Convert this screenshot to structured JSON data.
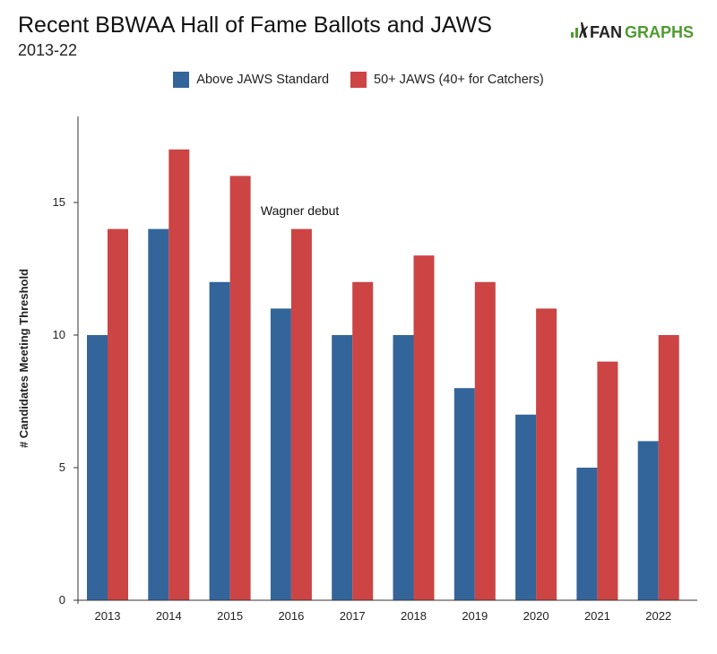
{
  "title": "Recent BBWAA Hall of Fame Ballots and JAWS",
  "subtitle": "2013-22",
  "logo": {
    "text_prefix": "FAN",
    "text_suffix": "GRAPHS",
    "icon": "fangraphs-logo-icon"
  },
  "colors": {
    "above": "#33659a",
    "fifty": "#cc4444",
    "logo_green": "#4f9b2f"
  },
  "chart_data": {
    "type": "bar",
    "title": "Recent BBWAA Hall of Fame Ballots and JAWS",
    "subtitle": "2013-22",
    "xlabel": "",
    "ylabel": "# Candidates Meeting Threshold",
    "categories": [
      "2013",
      "2014",
      "2015",
      "2016",
      "2017",
      "2018",
      "2019",
      "2020",
      "2021",
      "2022"
    ],
    "series": [
      {
        "name": "Above JAWS Standard",
        "values": [
          10,
          14,
          12,
          11,
          10,
          10,
          8,
          7,
          5,
          6
        ]
      },
      {
        "name": "50+ JAWS (40+ for Catchers)",
        "values": [
          14,
          17,
          16,
          14,
          12,
          13,
          12,
          11,
          9,
          10
        ]
      }
    ],
    "ylim": [
      0,
      18
    ],
    "yticks": [
      0,
      5,
      10,
      15
    ],
    "legend": "top-center",
    "grid": false,
    "annotations": [
      {
        "text": "Wagner debut",
        "category": "2016"
      }
    ]
  }
}
